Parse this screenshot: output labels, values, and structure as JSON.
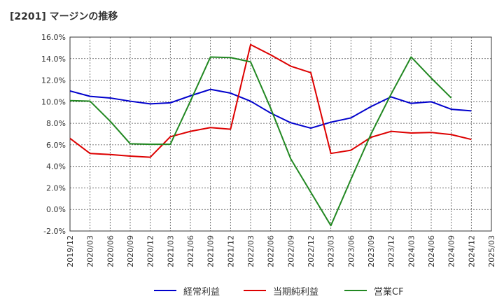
{
  "title": "[2201]  マージンの推移",
  "chart_data": {
    "type": "line",
    "title": "[2201]  マージンの推移",
    "xlabel": "",
    "ylabel": "",
    "ylim": [
      -2.0,
      16.0
    ],
    "y_ticks": [
      -2.0,
      0.0,
      2.0,
      4.0,
      6.0,
      8.0,
      10.0,
      12.0,
      14.0,
      16.0
    ],
    "y_unit": "%",
    "grid": true,
    "legend_position": "bottom",
    "categories": [
      "2019/12",
      "2020/03",
      "2020/06",
      "2020/09",
      "2020/12",
      "2021/03",
      "2021/06",
      "2021/09",
      "2021/12",
      "2022/03",
      "2022/06",
      "2022/09",
      "2022/12",
      "2023/03",
      "2023/06",
      "2023/09",
      "2023/12",
      "2024/03",
      "2024/06",
      "2024/09",
      "2024/12",
      "2025/03"
    ],
    "series": [
      {
        "name": "経常利益",
        "color": "#0000cc",
        "values": [
          11.0,
          10.5,
          10.35,
          10.05,
          9.8,
          9.9,
          10.55,
          11.15,
          10.8,
          10.05,
          8.95,
          8.05,
          7.55,
          8.1,
          8.5,
          9.55,
          10.45,
          9.85,
          10.0,
          9.3,
          9.15,
          null
        ]
      },
      {
        "name": "当期純利益",
        "color": "#dd0000",
        "values": [
          6.6,
          5.2,
          5.1,
          4.95,
          4.85,
          6.75,
          7.25,
          7.6,
          7.45,
          15.3,
          14.35,
          13.3,
          12.7,
          5.2,
          5.5,
          6.7,
          7.25,
          7.1,
          7.15,
          6.95,
          6.5,
          null
        ]
      },
      {
        "name": "営業CF",
        "color": "#228822",
        "values": [
          10.1,
          10.05,
          8.2,
          6.1,
          6.05,
          6.05,
          10.05,
          14.15,
          14.1,
          13.7,
          9.4,
          4.7,
          1.6,
          -1.5,
          2.8,
          7.0,
          10.7,
          14.15,
          12.2,
          10.35,
          null,
          null
        ]
      }
    ]
  }
}
